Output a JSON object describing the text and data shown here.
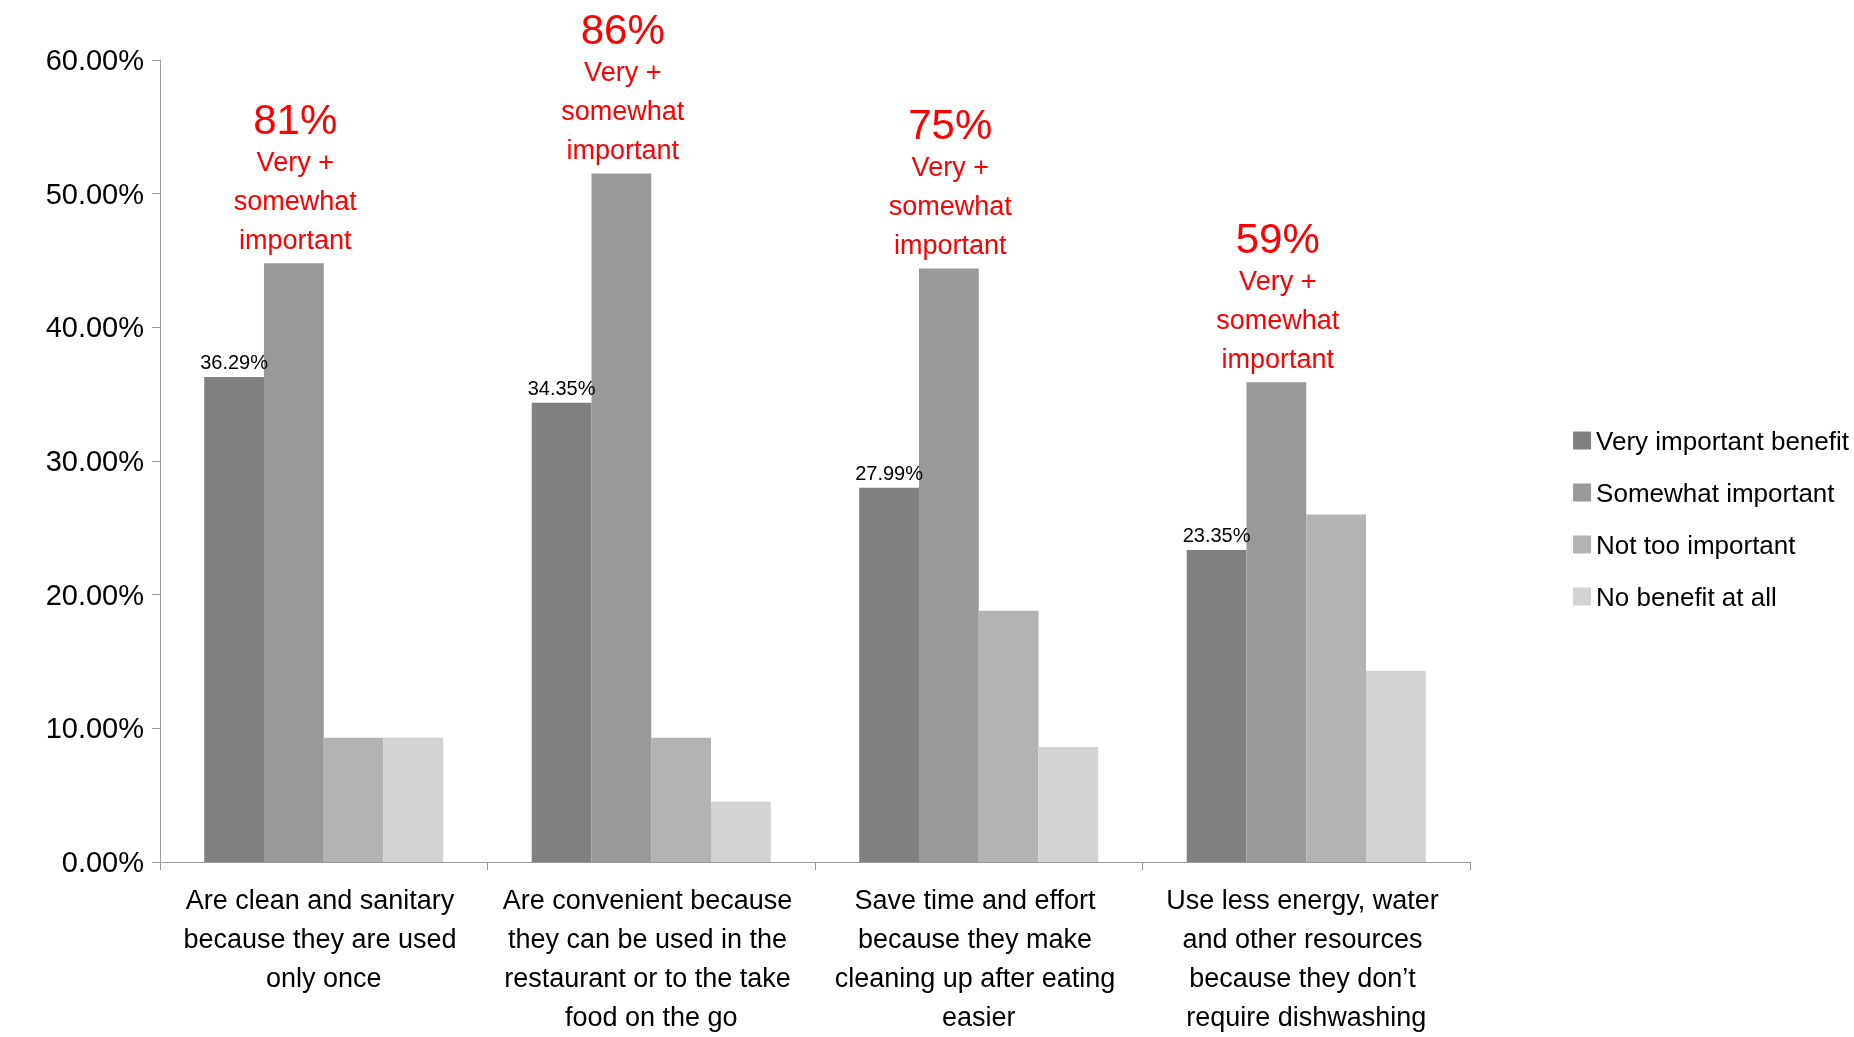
{
  "chart_data": {
    "type": "bar",
    "categories": [
      "Are clean and sanitary because they are used only once",
      "Are convenient because they can be used in the restaurant or to the take food on the go",
      "Save time and effort because they make cleaning up after eating easier",
      "Use less energy, water and other resources because they don’t require dishwashing"
    ],
    "series": [
      {
        "name": "Very important benefit",
        "color": "#808080",
        "values": [
          36.29,
          34.35,
          27.99,
          23.35
        ],
        "value_labels": [
          "36.29%",
          "34.35%",
          "27.99%",
          "23.35%"
        ]
      },
      {
        "name": "Somewhat important",
        "color": "#999999",
        "values": [
          44.8,
          51.5,
          44.4,
          35.9
        ]
      },
      {
        "name": "Not too important",
        "color": "#b3b3b3",
        "values": [
          9.3,
          9.3,
          18.8,
          26.0
        ]
      },
      {
        "name": "No benefit at all",
        "color": "#d3d3d3",
        "values": [
          9.3,
          4.5,
          8.6,
          14.3
        ]
      }
    ],
    "ylim": [
      0,
      60
    ],
    "yticks": [
      {
        "value": 0,
        "label": "0.00%"
      },
      {
        "value": 10,
        "label": "10.00%"
      },
      {
        "value": 20,
        "label": "20.00%"
      },
      {
        "value": 30,
        "label": "30.00%"
      },
      {
        "value": 40,
        "label": "40.00%"
      },
      {
        "value": 50,
        "label": "50.00%"
      },
      {
        "value": 60,
        "label": "60.00%"
      }
    ],
    "grid": false,
    "legend": "right",
    "annotations": [
      "81%\nVery +\nsomewhat\nimportant",
      "86%\nVery +\nsomewhat\nimportant",
      "75%\nVery +\nsomewhat\nimportant",
      "59%\nVery +\nsomewhat\nimportant"
    ]
  }
}
